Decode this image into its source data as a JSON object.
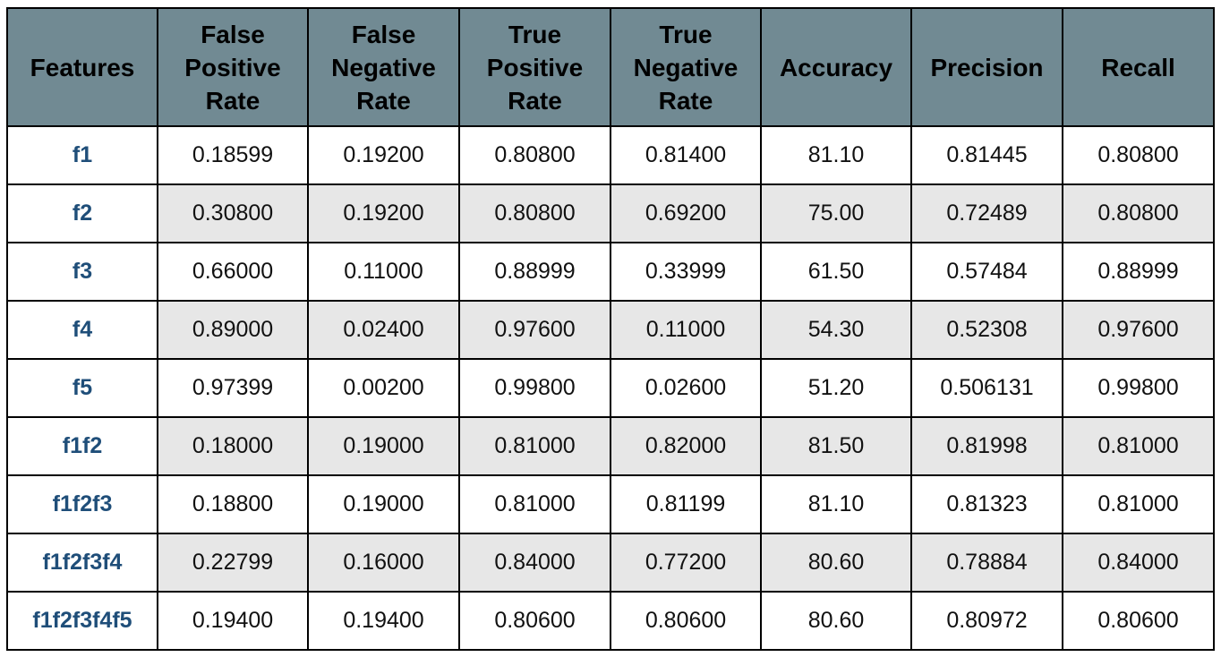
{
  "table": {
    "headers": [
      "Features",
      "False Positive Rate",
      "False Negative Rate",
      "True Positive Rate",
      "True Negative Rate",
      "Accuracy",
      "Precision",
      "Recall"
    ],
    "rows": [
      [
        "f1",
        "0.18599",
        "0.19200",
        "0.80800",
        "0.81400",
        "81.10",
        "0.81445",
        "0.80800"
      ],
      [
        "f2",
        "0.30800",
        "0.19200",
        "0.80800",
        "0.69200",
        "75.00",
        "0.72489",
        "0.80800"
      ],
      [
        "f3",
        "0.66000",
        "0.11000",
        "0.88999",
        "0.33999",
        "61.50",
        "0.57484",
        "0.88999"
      ],
      [
        "f4",
        "0.89000",
        "0.02400",
        "0.97600",
        "0.11000",
        "54.30",
        "0.52308",
        "0.97600"
      ],
      [
        "f5",
        "0.97399",
        "0.00200",
        "0.99800",
        "0.02600",
        "51.20",
        "0.506131",
        "0.99800"
      ],
      [
        "f1f2",
        "0.18000",
        "0.19000",
        "0.81000",
        "0.82000",
        "81.50",
        "0.81998",
        "0.81000"
      ],
      [
        "f1f2f3",
        "0.18800",
        "0.19000",
        "0.81000",
        "0.81199",
        "81.10",
        "0.81323",
        "0.81000"
      ],
      [
        "f1f2f3f4",
        "0.22799",
        "0.16000",
        "0.84000",
        "0.77200",
        "80.60",
        "0.78884",
        "0.84000"
      ],
      [
        "f1f2f3f4f5",
        "0.19400",
        "0.19400",
        "0.80600",
        "0.80600",
        "80.60",
        "0.80972",
        "0.80600"
      ]
    ]
  },
  "colors": {
    "header_bg": "#718a93",
    "feature_text": "#1f4e79",
    "alt_row_bg": "#e7e7e7"
  }
}
